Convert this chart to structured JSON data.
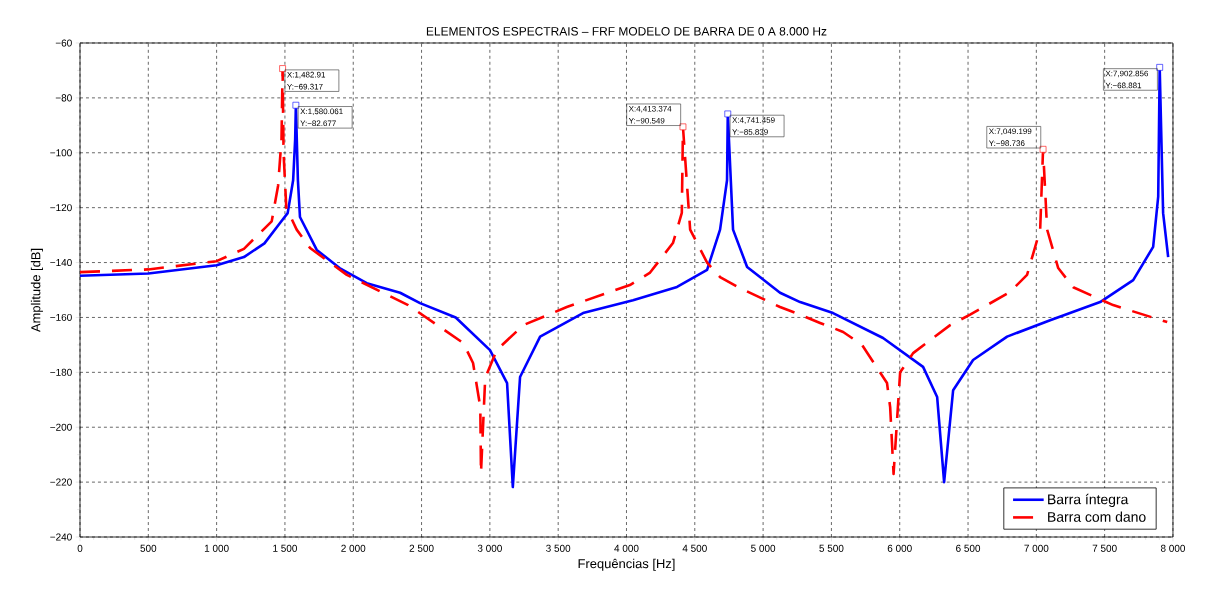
{
  "chart_data": {
    "type": "line",
    "title": "ELEMENTOS ESPECTRAIS – FRF MODELO DE BARRA DE 0 A 8.000 Hz",
    "xlabel": "Frequências [Hz]",
    "ylabel": "Amplitude [dB]",
    "xlim": [
      0,
      8000
    ],
    "ylim": [
      -240,
      -60
    ],
    "xticks": [
      0,
      500,
      {
        "value": 1000,
        "label": "1 000"
      },
      {
        "value": 1500,
        "label": "1 500"
      },
      {
        "value": 2000,
        "label": "2 000"
      },
      {
        "value": 2500,
        "label": "2 500"
      },
      {
        "value": 3000,
        "label": "3 000"
      },
      {
        "value": 3500,
        "label": "3 500"
      },
      {
        "value": 4000,
        "label": "4 000"
      },
      {
        "value": 4500,
        "label": "4 500"
      },
      {
        "value": 5000,
        "label": "5 000"
      },
      {
        "value": 5500,
        "label": "5 500"
      },
      {
        "value": 6000,
        "label": "6 000"
      },
      {
        "value": 6500,
        "label": "6 500"
      },
      {
        "value": 7000,
        "label": "7 000"
      },
      {
        "value": 7500,
        "label": "7 500"
      },
      {
        "value": 8000,
        "label": "8 000"
      }
    ],
    "yticks": [
      {
        "value": -240,
        "label": "−240"
      },
      {
        "value": -220,
        "label": "−220"
      },
      {
        "value": -200,
        "label": "−200"
      },
      {
        "value": -180,
        "label": "−180"
      },
      {
        "value": -160,
        "label": "−160"
      },
      {
        "value": -140,
        "label": "−140"
      },
      {
        "value": -120,
        "label": "−120"
      },
      {
        "value": -100,
        "label": "−100"
      },
      {
        "value": -80,
        "label": "−80"
      },
      {
        "value": -60,
        "label": "−60"
      }
    ],
    "grid": true,
    "legend": "bottom right",
    "series": [
      {
        "name": "Barra íntegra",
        "color": "#0000ff",
        "line_style": "solid",
        "x": [
          0,
          500,
          1000,
          1200,
          1350,
          1464,
          1520,
          1560,
          1575,
          1580.061,
          1595,
          1610,
          1733,
          1900,
          2099,
          2343,
          2489,
          2750,
          3001,
          3126,
          3168,
          3221,
          3368,
          3682,
          4048,
          4370,
          4590,
          4685,
          4736,
          4741.459,
          4780,
          4883,
          5124,
          5271,
          5512,
          5878,
          6171,
          6274,
          6325,
          6391,
          6537,
          6786,
          7101,
          7467,
          7709,
          7855,
          7892,
          7902.856,
          7928,
          7965
        ],
        "values": [
          -144.8,
          -144,
          -141,
          -138,
          -133,
          -125.6,
          -122,
          -110,
          -95,
          -82.677,
          -110,
          -123.4,
          -135.4,
          -142,
          -147.5,
          -151,
          -154.8,
          -160,
          -171.9,
          -183.9,
          -221.8,
          -181.7,
          -167,
          -158.4,
          -153.7,
          -148.9,
          -142.7,
          -128,
          -110,
          -85.839,
          -128,
          -141.6,
          -151,
          -154.4,
          -158.4,
          -167.5,
          -178,
          -189,
          -220,
          -186.5,
          -175.5,
          -167,
          -161,
          -154.4,
          -146.4,
          -134.3,
          -116,
          -68.881,
          -122,
          -138
        ]
      },
      {
        "name": "Barra com dano",
        "color": "#ff0000",
        "line_style": "dashed",
        "x": [
          0,
          500,
          1000,
          1200,
          1403,
          1450,
          1475,
          1482.91,
          1490,
          1510,
          1586,
          1684,
          1953,
          2402,
          2805,
          2877,
          2930,
          2935,
          2966,
          3050,
          3245,
          3563,
          4025,
          4170,
          4340,
          4405,
          4413.374,
          4466,
          4590,
          4685,
          4831,
          5124,
          5271,
          5417,
          5586,
          5724,
          5907,
          5930,
          5955,
          6003,
          6098,
          6369,
          6515,
          6808,
          6932,
          7028,
          7049.199,
          7079,
          7160,
          7270,
          7562,
          7958
        ],
        "values": [
          -143.5,
          -142.5,
          -139.5,
          -135,
          -125,
          -112,
          -95,
          -69.317,
          -100,
          -120,
          -128,
          -134.7,
          -144.5,
          -155.5,
          -169.3,
          -176.6,
          -192.7,
          -216.7,
          -182,
          -171.9,
          -162.8,
          -156.2,
          -148.2,
          -143.8,
          -132.9,
          -121.9,
          -90.549,
          -128,
          -140,
          -145.3,
          -149.3,
          -156.2,
          -159,
          -162,
          -165.3,
          -170,
          -183.9,
          -192.7,
          -217,
          -180,
          -173,
          -162.8,
          -159,
          -150.7,
          -144.5,
          -128,
          -98.736,
          -128,
          -142,
          -149,
          -155.5,
          -161.7
        ]
      }
    ],
    "annotations": [
      {
        "text": "X:1,482.91 Y:−69.317",
        "x": 1482.91,
        "y": -69.317
      },
      {
        "text": "X:1,580.061 Y:−82.677",
        "x": 1580.061,
        "y": -82.677
      },
      {
        "text": "X:4,413.374 Y:−90.549",
        "x": 4413.374,
        "y": -90.549
      },
      {
        "text": "X:4,741.459 Y:−85.839",
        "x": 4741.459,
        "y": -85.839
      },
      {
        "text": "X:7,049.199 Y:−98.736",
        "x": 7049.199,
        "y": -98.736
      },
      {
        "text": "X:7,902.856 Y:−68.881",
        "x": 7902.856,
        "y": -68.881
      }
    ]
  }
}
